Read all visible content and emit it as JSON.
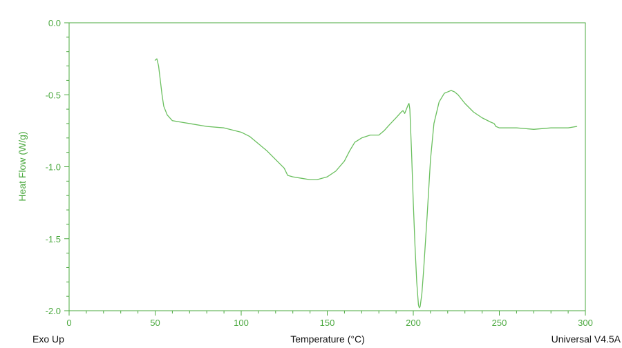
{
  "chart_data": {
    "type": "line",
    "title": "",
    "xlabel": "Temperature (°C)",
    "ylabel": "Heat Flow (W/g)",
    "xlim": [
      0,
      300
    ],
    "ylim": [
      -2.0,
      0.0
    ],
    "x_ticks": [
      0,
      50,
      100,
      150,
      200,
      250,
      300
    ],
    "y_ticks": [
      0.0,
      -0.5,
      -1.0,
      -1.5,
      -2.0
    ],
    "x_tick_labels": [
      "0",
      "50",
      "100",
      "150",
      "200",
      "250",
      "300"
    ],
    "y_tick_labels": [
      "0.0",
      "-0.5",
      "-1.0",
      "-1.5",
      "-2.0"
    ],
    "grid": false,
    "series": [
      {
        "color": "#6abf5e",
        "x": [
          50,
          51,
          52,
          53,
          54,
          55,
          57,
          60,
          65,
          70,
          80,
          90,
          100,
          105,
          110,
          115,
          120,
          125,
          127,
          130,
          135,
          140,
          144,
          150,
          155,
          160,
          163,
          166,
          170,
          175,
          180,
          183,
          186,
          190,
          193,
          194,
          195,
          196,
          197,
          197.5,
          198,
          199,
          200,
          201,
          202,
          203,
          203.5,
          204,
          205,
          206,
          208,
          210,
          212,
          215,
          218,
          220,
          222,
          224,
          226,
          228,
          230,
          235,
          240,
          245,
          247,
          248,
          250,
          260,
          270,
          280,
          290,
          295
        ],
        "y": [
          -0.26,
          -0.25,
          -0.3,
          -0.4,
          -0.5,
          -0.58,
          -0.64,
          -0.68,
          -0.69,
          -0.7,
          -0.72,
          -0.73,
          -0.76,
          -0.79,
          -0.84,
          -0.89,
          -0.95,
          -1.01,
          -1.06,
          -1.07,
          -1.08,
          -1.09,
          -1.09,
          -1.07,
          -1.03,
          -0.96,
          -0.89,
          -0.83,
          -0.8,
          -0.78,
          -0.78,
          -0.75,
          -0.71,
          -0.66,
          -0.62,
          -0.61,
          -0.63,
          -0.6,
          -0.57,
          -0.56,
          -0.6,
          -0.9,
          -1.25,
          -1.55,
          -1.8,
          -1.96,
          -1.98,
          -1.97,
          -1.88,
          -1.72,
          -1.35,
          -0.95,
          -0.7,
          -0.55,
          -0.49,
          -0.48,
          -0.47,
          -0.48,
          -0.5,
          -0.53,
          -0.56,
          -0.62,
          -0.66,
          -0.69,
          -0.7,
          -0.72,
          -0.73,
          -0.73,
          -0.74,
          -0.73,
          -0.73,
          -0.72
        ]
      }
    ],
    "footer_left": "Exo Up",
    "footer_right": "Universal V4.5A"
  },
  "colors": {
    "axis": "#4aa83e",
    "line": "#6abf5e",
    "footer_text": "#111111"
  }
}
